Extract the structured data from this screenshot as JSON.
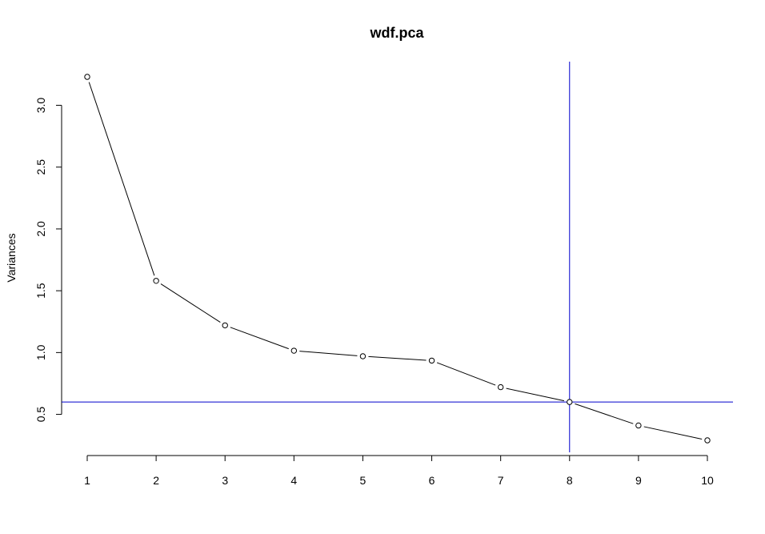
{
  "chart_data": {
    "type": "line",
    "title": "wdf.pca",
    "xlabel": "",
    "ylabel": "Variances",
    "x": [
      1,
      2,
      3,
      4,
      5,
      6,
      7,
      8,
      9,
      10
    ],
    "x_tick_labels": [
      "1",
      "2",
      "3",
      "4",
      "5",
      "6",
      "7",
      "8",
      "9",
      "10"
    ],
    "series": [
      {
        "values": [
          3.23,
          1.58,
          1.22,
          1.015,
          0.97,
          0.935,
          0.72,
          0.6,
          0.41,
          0.29
        ]
      }
    ],
    "y_ticks": [
      0.5,
      1.0,
      1.5,
      2.0,
      2.5,
      3.0
    ],
    "y_tick_labels": [
      "0.5",
      "1.0",
      "1.5",
      "2.0",
      "2.5",
      "3.0"
    ],
    "xlim": [
      1,
      10
    ],
    "ylim": [
      0.29,
      3.23
    ],
    "grid": false,
    "reference_lines": {
      "horizontal_y": 0.6,
      "vertical_x": 8,
      "color": "#0000cc"
    },
    "colors": {
      "line": "#000000",
      "points": "#000000"
    }
  }
}
